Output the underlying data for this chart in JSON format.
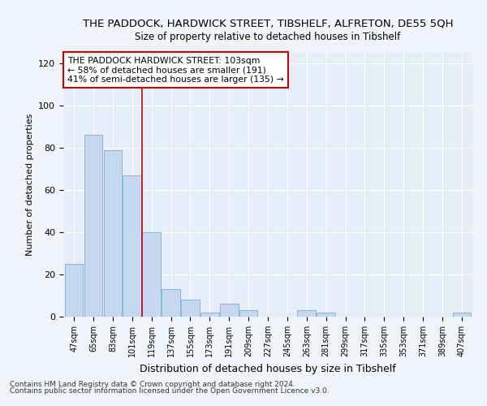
{
  "title": "THE PADDOCK, HARDWICK STREET, TIBSHELF, ALFRETON, DE55 5QH",
  "subtitle": "Size of property relative to detached houses in Tibshelf",
  "xlabel": "Distribution of detached houses by size in Tibshelf",
  "ylabel": "Number of detached properties",
  "categories": [
    "47sqm",
    "65sqm",
    "83sqm",
    "101sqm",
    "119sqm",
    "137sqm",
    "155sqm",
    "173sqm",
    "191sqm",
    "209sqm",
    "227sqm",
    "245sqm",
    "263sqm",
    "281sqm",
    "299sqm",
    "317sqm",
    "335sqm",
    "353sqm",
    "371sqm",
    "389sqm",
    "407sqm"
  ],
  "values": [
    25,
    86,
    79,
    67,
    40,
    13,
    8,
    2,
    6,
    3,
    0,
    0,
    3,
    2,
    0,
    0,
    0,
    0,
    0,
    0,
    2
  ],
  "bar_color": "#c5d8ef",
  "bar_edge_color": "#7aadd4",
  "vline_x": 3.5,
  "vline_color": "#cc0000",
  "annotation_line1": "THE PADDOCK HARDWICK STREET: 103sqm",
  "annotation_line2": "← 58% of detached houses are smaller (191)",
  "annotation_line3": "41% of semi-detached houses are larger (135) →",
  "annotation_box_color": "#cc0000",
  "footnote1": "Contains HM Land Registry data © Crown copyright and database right 2024.",
  "footnote2": "Contains public sector information licensed under the Open Government Licence v3.0.",
  "ylim": [
    0,
    125
  ],
  "yticks": [
    0,
    20,
    40,
    60,
    80,
    100,
    120
  ],
  "bg_color": "#f0f4fa",
  "plot_bg_color": "#e4edf8",
  "grid_color": "#ffffff",
  "title_fontsize": 9.5,
  "subtitle_fontsize": 8.5
}
